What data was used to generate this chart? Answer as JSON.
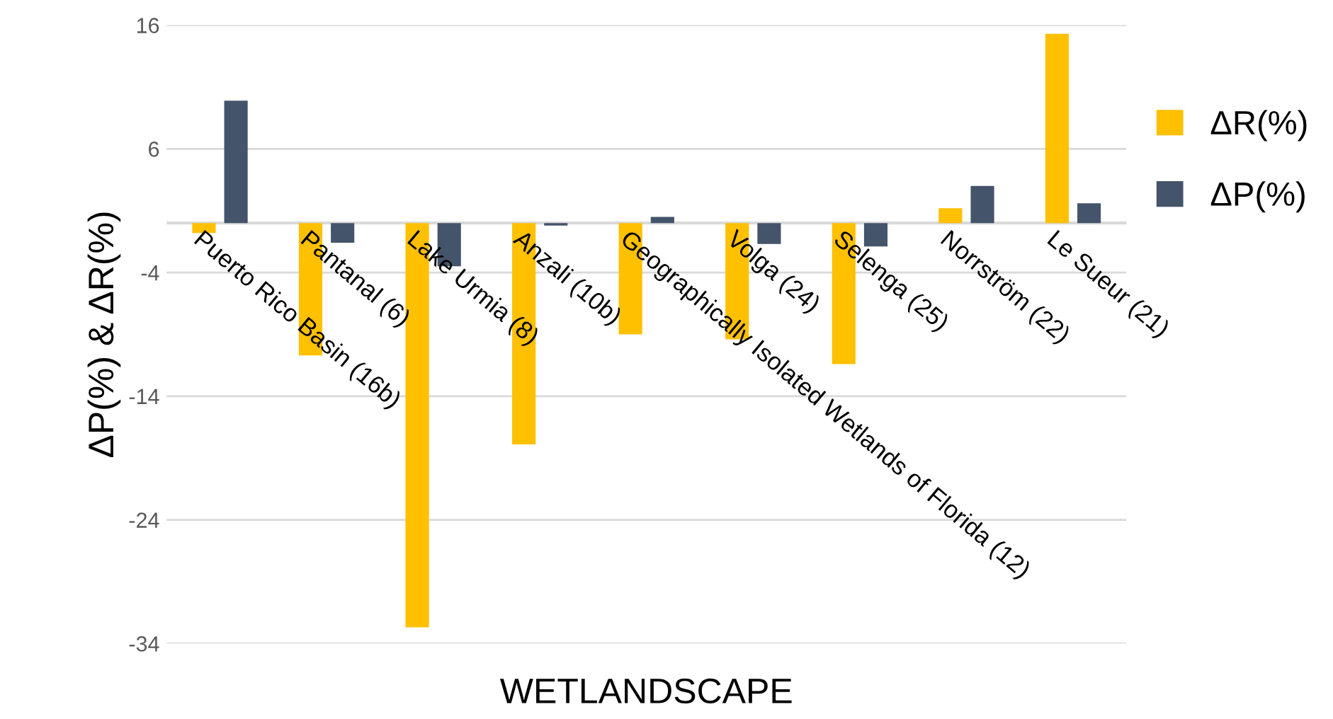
{
  "chart_data": {
    "type": "bar",
    "xlabel": "WETLANDSCAPE",
    "ylabel": "ΔP(%) & ΔR(%)",
    "categories": [
      "Puerto Rico Basin (16b)",
      "Pantanal (6)",
      "Lake Urmia (8)",
      "Anzali (10b)",
      "Geographically Isolated Wetlands of Florida (12)",
      "Volga (24)",
      "Selenga (25)",
      "Norrström (22)",
      "Le Sueur (21)"
    ],
    "series": [
      {
        "name": "ΔR(%)",
        "color": "#ffc000",
        "values": [
          -0.8,
          -10.7,
          -32.7,
          -17.9,
          -9.0,
          -9.4,
          -11.4,
          1.2,
          15.3
        ]
      },
      {
        "name": "ΔP(%)",
        "color": "#44546a",
        "values": [
          9.9,
          -1.6,
          -3.5,
          -0.2,
          0.5,
          -1.7,
          -1.9,
          3.0,
          1.6
        ]
      }
    ],
    "ylim": [
      -34,
      16
    ],
    "yticks": [
      -34,
      -24,
      -14,
      -4,
      6,
      16
    ],
    "grid": "y",
    "legend": "right"
  }
}
